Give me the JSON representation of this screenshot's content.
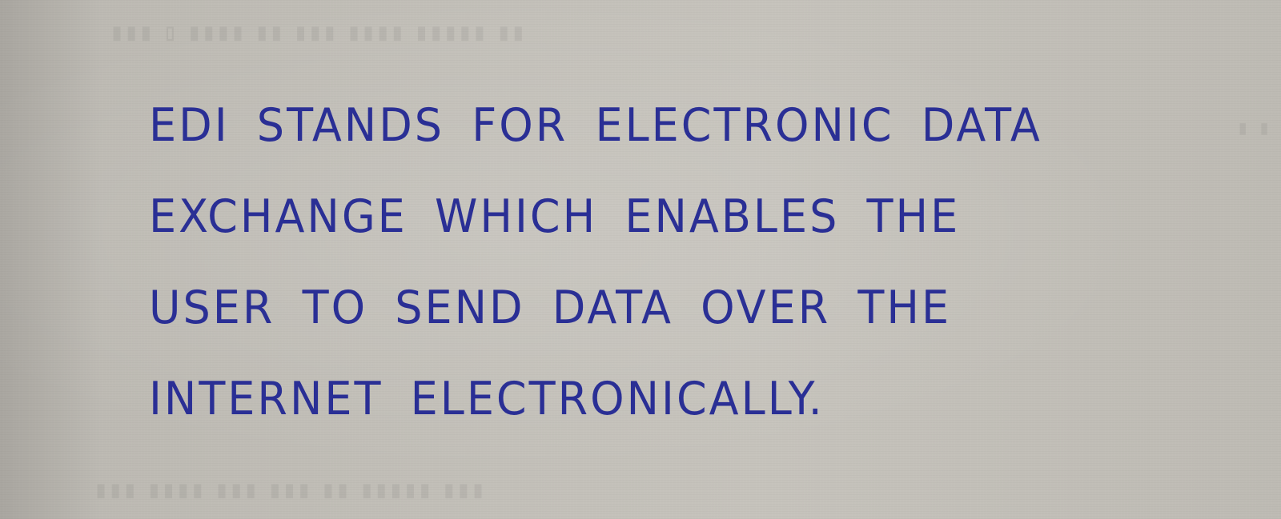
{
  "note": {
    "lines": [
      "EDI STANDS FOR ELECTRONIC DATA",
      "EXCHANGE WHICH ENABLES THE",
      "USER TO SEND DATA OVER THE",
      "INTERNET ELECTRONICALLY."
    ],
    "ink_color": "#2a2f95",
    "paper_color": "#c3c0b9"
  }
}
